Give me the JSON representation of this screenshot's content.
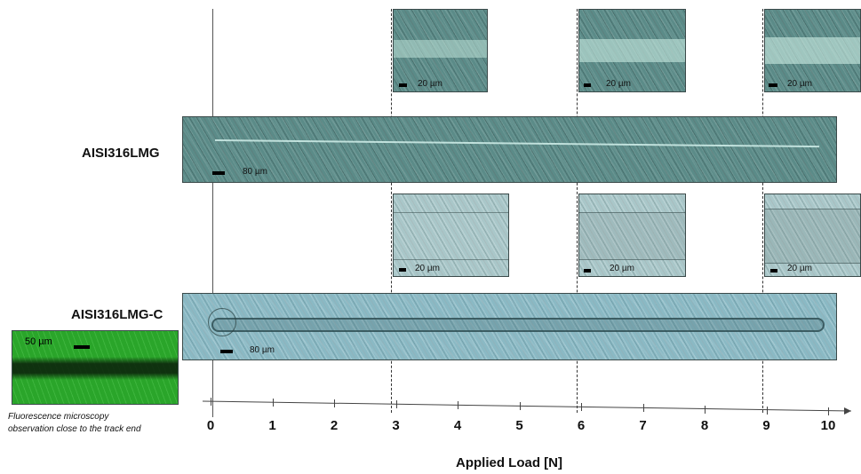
{
  "figure": {
    "x_axis": {
      "title": "Applied Load [N]",
      "ticks": [
        "0",
        "1",
        "2",
        "3",
        "4",
        "5",
        "6",
        "7",
        "8",
        "9",
        "10"
      ]
    },
    "samples": [
      {
        "label": "AISI316LMG",
        "scale_label": "80 µm",
        "insets": [
          {
            "load": "3",
            "scale_label": "20 µm"
          },
          {
            "load": "6",
            "scale_label": "20 µm"
          },
          {
            "load": "9",
            "scale_label": "20 µm"
          }
        ]
      },
      {
        "label": "AISI316LMG-C",
        "scale_label": "80 µm",
        "insets": [
          {
            "load": "3",
            "scale_label": "20 µm"
          },
          {
            "load": "6",
            "scale_label": "20 µm"
          },
          {
            "load": "9",
            "scale_label": "20 µm"
          }
        ]
      }
    ],
    "fluorescence": {
      "scale_label": "50 µm",
      "caption_line1": "Fluorescence microscopy",
      "caption_line2": "observation close to the track end"
    }
  }
}
